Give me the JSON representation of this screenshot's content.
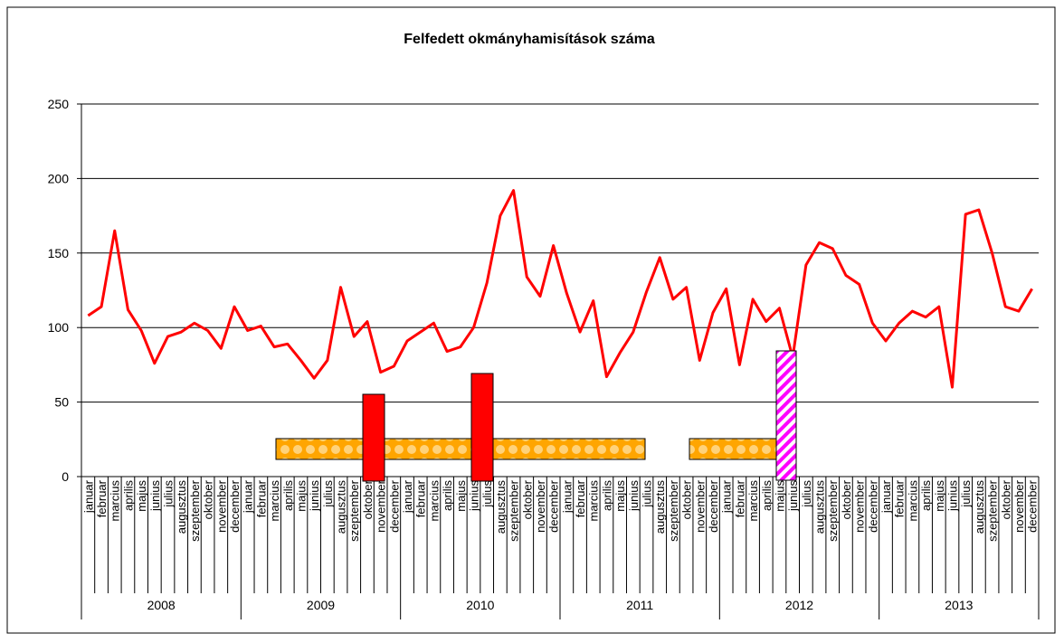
{
  "chart_data": {
    "type": "line",
    "title": "Felfedett okmányhamisítások száma",
    "categories": [
      "januar",
      "februar",
      "marcius",
      "aprilis",
      "majus",
      "junius",
      "julius",
      "augusztus",
      "szeptember",
      "oktober",
      "november",
      "december",
      "januar",
      "februar",
      "marcius",
      "aprilis",
      "majus",
      "junius",
      "julius",
      "augusztus",
      "szeptember",
      "oktober",
      "november",
      "december",
      "januar",
      "februar",
      "marcius",
      "aprilis",
      "majus",
      "junius",
      "julius",
      "augusztus",
      "szeptember",
      "oktober",
      "november",
      "december",
      "januar",
      "februar",
      "marcius",
      "aprilis",
      "majus",
      "junius",
      "julius",
      "augusztus",
      "szeptember",
      "oktober",
      "november",
      "december",
      "januar",
      "februar",
      "marcius",
      "aprilis",
      "majus",
      "junius",
      "julius",
      "augusztus",
      "szeptember",
      "oktober",
      "november",
      "december",
      "januar",
      "februar",
      "marcius",
      "aprilis",
      "majus",
      "junius",
      "julius",
      "augusztus",
      "szeptember",
      "oktober",
      "november",
      "december"
    ],
    "groups": [
      "2008",
      "2009",
      "2010",
      "2011",
      "2012",
      "2013"
    ],
    "series": [
      {
        "name": "Felfedett okmányhamisítások",
        "color": "#ff0000",
        "values": [
          108,
          114,
          165,
          112,
          98,
          76,
          94,
          97,
          103,
          98,
          86,
          114,
          98,
          101,
          87,
          89,
          78,
          66,
          78,
          127,
          94,
          104,
          70,
          74,
          91,
          97,
          103,
          84,
          87,
          100,
          130,
          175,
          192,
          134,
          121,
          155,
          123,
          97,
          118,
          67,
          83,
          97,
          124,
          147,
          119,
          127,
          78,
          110,
          126,
          75,
          119,
          104,
          113,
          80,
          142,
          157,
          153,
          135,
          129,
          103,
          91,
          103,
          111,
          107,
          114,
          60,
          176,
          179,
          150,
          114,
          111,
          126
        ]
      }
    ],
    "ylim": [
      0,
      250
    ],
    "yticks": [
      0,
      50,
      100,
      150,
      200,
      250
    ],
    "grid": true
  }
}
